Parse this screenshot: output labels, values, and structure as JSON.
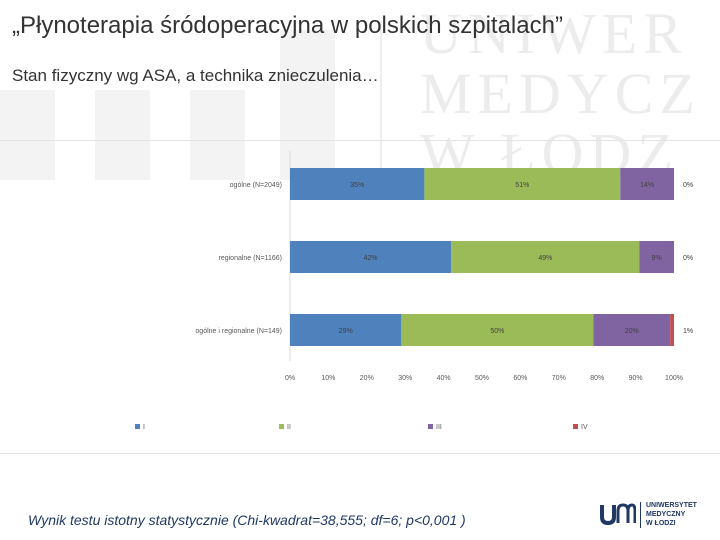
{
  "slide": {
    "title": "„Płynoterapia śródoperacyjna w polskich szpitalach”",
    "subtitle": "Stan fizyczny wg ASA, a technika znieczulenia…",
    "footnote": "Wynik testu istotny statystycznie (Chi-kwadrat=38,555; df=6; p<0,001 )"
  },
  "logo": {
    "lines": [
      "UNIWERSYTET",
      "MEDYCZNY",
      "W ŁODZI"
    ],
    "watermark_lines": [
      "UNIWER",
      "MEDYCZ",
      "W ŁODZ"
    ],
    "color": "#1f3864"
  },
  "chart_data": {
    "type": "bar",
    "orientation": "horizontal",
    "stacked": "percent",
    "categories": [
      "ogólne (N=2049)",
      "regionalne (N=1166)",
      "ogólne i regionalne (N=149)"
    ],
    "series": [
      {
        "name": "I",
        "color": "#4f81bd",
        "values": [
          35,
          42,
          29
        ]
      },
      {
        "name": "II",
        "color": "#9bbb59",
        "values": [
          51,
          49,
          50
        ]
      },
      {
        "name": "III",
        "color": "#8064a2",
        "values": [
          14,
          9,
          20
        ]
      },
      {
        "name": "IV",
        "color": "#c0504d",
        "values": [
          0,
          0,
          1
        ]
      }
    ],
    "data_labels": [
      [
        "35%",
        "51%",
        "14%",
        "0%"
      ],
      [
        "42%",
        "49%",
        "9%",
        "0%"
      ],
      [
        "29%",
        "50%",
        "20%",
        "1%"
      ]
    ],
    "xlim": [
      0,
      100
    ],
    "x_ticks": [
      "0%",
      "10%",
      "20%",
      "30%",
      "40%",
      "50%",
      "60%",
      "70%",
      "80%",
      "90%",
      "100%"
    ],
    "legend_position": "bottom",
    "grid": false
  }
}
